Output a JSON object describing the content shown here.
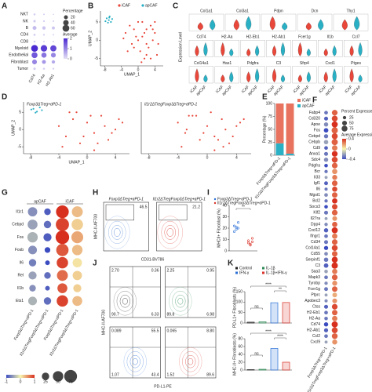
{
  "chart_data": [
    {
      "panel": "A",
      "type": "dot",
      "rows": [
        "NKT",
        "NK",
        "B",
        "CD4",
        "CD8",
        "Myeloid",
        "Endothelial",
        "Fibroblast",
        "Tumor"
      ],
      "columns": [
        "Cd74",
        "H2-Aa",
        "H2-Ab1"
      ],
      "values": [
        [
          5,
          3,
          2
        ],
        [
          8,
          4,
          3
        ],
        [
          20,
          15,
          12
        ],
        [
          6,
          4,
          3
        ],
        [
          5,
          3,
          3
        ],
        [
          60,
          55,
          50
        ],
        [
          45,
          35,
          30
        ],
        [
          30,
          20,
          15
        ],
        [
          8,
          5,
          4
        ]
      ],
      "expression": [
        [
          0.2,
          0.2,
          0.2
        ],
        [
          0.2,
          0.2,
          0.2
        ],
        [
          0.4,
          0.3,
          0.3
        ],
        [
          0.2,
          0.2,
          0.2
        ],
        [
          0.2,
          0.2,
          0.2
        ],
        [
          2,
          1.8,
          1.7
        ],
        [
          1.5,
          1.2,
          1
        ],
        [
          1,
          0.8,
          0.6
        ],
        [
          0.2,
          0.2,
          0.2
        ]
      ],
      "size_title": "Percentage",
      "size_ticks": [
        20,
        40,
        60
      ],
      "color_title": "Average",
      "color_ticks": [
        0,
        1,
        2
      ],
      "colors": [
        "#e4e0f5",
        "#4b2bd1"
      ]
    },
    {
      "panel": "B",
      "type": "scatter",
      "x_label": "UMAP_1",
      "y_label": "UMAP_2",
      "xlim": [
        -9,
        6
      ],
      "xticks": [
        -8,
        -4,
        0,
        4
      ],
      "ylim": [
        -7,
        8
      ],
      "yticks": [
        -5,
        0,
        5
      ],
      "legend": true,
      "series": [
        {
          "name": "iCAF",
          "color": "#e8473a",
          "x": [
            -3,
            -2,
            -1.5,
            -1,
            0,
            0.5,
            1,
            1.5,
            2,
            2.5,
            3,
            3.5,
            4,
            4.5,
            -2.5,
            -0.5,
            1,
            2,
            3,
            4,
            0,
            2,
            3.5,
            -1,
            1.5,
            -3.5,
            4.8,
            0.8
          ],
          "y": [
            2,
            4,
            -1,
            3,
            5,
            -3,
            1,
            -5,
            3,
            -2,
            4,
            0,
            2,
            -4,
            -3,
            1,
            5,
            -1,
            -5,
            5,
            0,
            -4,
            3,
            -2,
            2,
            0.5,
            -1,
            -6
          ]
        },
        {
          "name": "apCAF",
          "color": "#2ab0c5",
          "x": [
            -7.5,
            -7,
            -6.8,
            -6.5,
            -7.2,
            -6.2,
            -7.8,
            -6.9
          ],
          "y": [
            6,
            5.5,
            6.5,
            5,
            4.8,
            5.8,
            5.2,
            6.2
          ]
        }
      ]
    },
    {
      "panel": "C",
      "type": "violin",
      "y_label": "Expression Level",
      "categories": [
        "iCAF",
        "apCAF"
      ],
      "colors": [
        "#e8473a",
        "#2ab0c5"
      ],
      "rows": [
        [
          "Col1a1",
          "Col3a1",
          "Pdpn",
          "Dcn",
          "Thy1"
        ],
        [
          "Cd74",
          "H2-Aa",
          "H2-Eb1",
          "H2-Ab1",
          "Fcer1g",
          "Il1b",
          "Ccl7"
        ],
        [
          "Col14a1",
          "Has1",
          "Pdgfra",
          "C3",
          "Sfrp4",
          "Cxcl1",
          "Ptges"
        ]
      ]
    },
    {
      "panel": "D",
      "type": "scatter",
      "title": "Foxp3ΔTreg+αPD-1",
      "title_color": "#2a6fd6",
      "x_label": "UMAP_1",
      "y_label": "UMAP_2",
      "xlim": [
        -9,
        6
      ],
      "xticks": [
        -8,
        -4,
        0,
        4
      ],
      "ylim": [
        -7,
        8
      ],
      "yticks": [
        -5,
        0,
        5
      ],
      "series": [
        {
          "color": "#e8473a",
          "x": [
            -4,
            -3,
            -2,
            -1,
            0,
            1,
            2,
            3,
            4,
            5,
            -3.5,
            -2.5,
            -0.5,
            0.5,
            1.5,
            2.5,
            3.5,
            4.5,
            -1.5,
            1
          ],
          "y": [
            1,
            -2,
            3,
            -4,
            2,
            -1,
            4,
            -3,
            0,
            2,
            -5,
            5,
            -2,
            4,
            -4,
            1,
            -1,
            3,
            5,
            -6
          ]
        },
        {
          "color": "#2ab0c5",
          "x": [
            -7.6,
            -7.1,
            -6.7,
            -7.3,
            -6.4,
            -7.9
          ],
          "y": [
            6,
            5.2,
            6.4,
            4.9,
            5.6,
            5.8
          ]
        }
      ]
    },
    {
      "type": "scatter",
      "title": "Il1r2ΔTregFoxp3ΔTreg+αPD-1",
      "title_color": "#d9332a",
      "xlim": [
        -9,
        6
      ],
      "xticks": [
        -8,
        -4,
        0,
        4
      ],
      "ylim": [
        -7,
        8
      ],
      "series": [
        {
          "color": "#e8473a",
          "x": [
            -4,
            -3,
            -2,
            -1,
            0,
            1,
            2,
            3,
            4,
            5,
            -3.5,
            -2.5,
            -0.5,
            0.5,
            1.5,
            2.5,
            3.5,
            4.5,
            -1.5,
            1,
            2.2,
            -2.8
          ],
          "y": [
            2,
            -1,
            4,
            -3,
            1,
            -2,
            3,
            -4,
            1,
            3,
            -5,
            4,
            -1,
            5,
            -3,
            0,
            -2,
            2,
            4,
            -6,
            -5,
            0
          ]
        }
      ]
    },
    {
      "panel": "E",
      "type": "bar",
      "stacked": true,
      "y_label": "Percentage (%)",
      "categories": [
        "Foxp3ΔTreg+αPD-1",
        "Il1r2ΔTregFoxp3ΔTreg+αPD-1"
      ],
      "label_colors": [
        "#2a6fd6",
        "#d9332a"
      ],
      "ylim": [
        0,
        100
      ],
      "yticks": [
        0,
        25,
        50,
        75,
        100
      ],
      "series": [
        {
          "name": "apCAF",
          "color": "#2ab0c5",
          "values": [
            23,
            3
          ]
        },
        {
          "name": "iCAF",
          "color": "#e8735f",
          "values": [
            77,
            97
          ]
        }
      ]
    },
    {
      "panel": "F",
      "type": "dot",
      "rows": [
        "Fabp4",
        "Cd320",
        "Apoe",
        "Fos",
        "Cebpd",
        "Cebpb",
        "Cd9",
        "Anxa1",
        "Sdc4",
        "Pdgfra",
        "Bcr",
        "Il33",
        "Igf1",
        "Il6",
        "Mgst1",
        "Bcl2",
        "Socs3",
        "Klf2",
        "Il27ra",
        "Dpp4",
        "Cxcl12",
        "Ifngr1",
        "Cd34",
        "Col14a1",
        "Cd55",
        "Serpinf1",
        "C3",
        "Saa3",
        "Mapk3",
        "Tyrobp",
        "Fcer1g",
        "Ptprc",
        "Apobec3",
        "Ctss",
        "H2-Eb1",
        "H2-Aa",
        "Cd74",
        "H2-Ab1",
        "Ccl2",
        "Cxcl9"
      ],
      "columns": [
        "Foxp3ΔTreg+αPD-1",
        "Il1r2ΔTregFoxp3ΔTreg+αPD-1"
      ],
      "column_colors": [
        "#2a6fd6",
        "#d9332a"
      ],
      "values": [
        [
          30,
          70
        ],
        [
          35,
          75
        ],
        [
          40,
          80
        ],
        [
          45,
          85
        ],
        [
          38,
          78
        ],
        [
          42,
          82
        ],
        [
          30,
          65
        ],
        [
          35,
          72
        ],
        [
          40,
          76
        ],
        [
          28,
          70
        ],
        [
          25,
          60
        ],
        [
          20,
          55
        ],
        [
          32,
          68
        ],
        [
          22,
          58
        ],
        [
          30,
          66
        ],
        [
          25,
          62
        ],
        [
          28,
          64
        ],
        [
          35,
          70
        ],
        [
          20,
          50
        ],
        [
          26,
          60
        ],
        [
          40,
          80
        ],
        [
          30,
          62
        ],
        [
          35,
          68
        ],
        [
          38,
          74
        ],
        [
          30,
          66
        ],
        [
          42,
          78
        ],
        [
          45,
          85
        ],
        [
          28,
          60
        ],
        [
          30,
          70
        ],
        [
          25,
          55
        ],
        [
          32,
          65
        ],
        [
          20,
          48
        ],
        [
          22,
          50
        ],
        [
          35,
          70
        ],
        [
          30,
          64
        ],
        [
          28,
          62
        ],
        [
          40,
          82
        ],
        [
          36,
          76
        ],
        [
          30,
          72
        ],
        [
          20,
          56
        ]
      ],
      "expression": [
        [
          -0.3,
          0.3
        ],
        [
          -0.35,
          0.35
        ],
        [
          -0.25,
          0.4
        ],
        [
          -0.4,
          0.3
        ],
        [
          -0.3,
          0.35
        ],
        [
          -0.2,
          0.3
        ],
        [
          -0.35,
          0.25
        ],
        [
          -0.3,
          0.4
        ],
        [
          -0.25,
          0.35
        ],
        [
          -0.4,
          0.3
        ],
        [
          -0.3,
          0.2
        ],
        [
          -0.2,
          0.25
        ],
        [
          -0.35,
          0.3
        ],
        [
          -0.3,
          0.35
        ],
        [
          -0.25,
          0.3
        ],
        [
          -0.3,
          0.4
        ],
        [
          -0.4,
          0.35
        ],
        [
          -0.3,
          0.3
        ],
        [
          -0.2,
          0.2
        ],
        [
          -0.25,
          0.3
        ],
        [
          -0.35,
          0.4
        ],
        [
          -0.3,
          0.25
        ],
        [
          -0.3,
          0.3
        ],
        [
          -0.4,
          0.35
        ],
        [
          -0.25,
          0.3
        ],
        [
          -0.3,
          0.4
        ],
        [
          -0.35,
          0.4
        ],
        [
          -0.2,
          0.25
        ],
        [
          -0.3,
          0.3
        ],
        [
          -0.25,
          0.2
        ],
        [
          -0.3,
          0.3
        ],
        [
          -0.2,
          0.15
        ],
        [
          -0.25,
          0.2
        ],
        [
          -0.35,
          0.35
        ],
        [
          -0.3,
          0.3
        ],
        [
          -0.3,
          0.25
        ],
        [
          -0.4,
          0.4
        ],
        [
          -0.35,
          0.35
        ],
        [
          -0.3,
          0.3
        ],
        [
          -0.2,
          0.2
        ]
      ],
      "size_title": "Percent Expressed",
      "size_ticks": [
        25,
        50,
        75
      ],
      "color_title": "Average Expression",
      "color_ticks": [
        0.4,
        0,
        -0.4
      ],
      "colors": [
        "#3b4cc0",
        "#f7f7b0",
        "#d7301f"
      ]
    },
    {
      "panel": "G",
      "type": "dot",
      "headers": [
        "apCAF",
        "iCAF"
      ],
      "rows": [
        "Il1r1",
        "Cebpd",
        "Fos",
        "Fosb",
        "Il6",
        "Rel",
        "Il1b",
        "Ets1"
      ],
      "columns": [
        "Foxp3ΔTreg+αPD-1",
        "Il1r2ΔTregFoxp3ΔTreg+αPD-1",
        "Foxp3ΔTreg+αPD-1",
        "Il1r2ΔTregFoxp3ΔTreg+αPD-1"
      ],
      "column_colors": [
        "#2a6fd6",
        "#d9332a",
        "#2a6fd6",
        "#d9332a"
      ],
      "values": [
        [
          40,
          20,
          75,
          55
        ],
        [
          45,
          25,
          80,
          60
        ],
        [
          50,
          30,
          85,
          65
        ],
        [
          35,
          15,
          70,
          50
        ],
        [
          25,
          10,
          60,
          40
        ],
        [
          30,
          20,
          55,
          40
        ],
        [
          20,
          10,
          45,
          30
        ],
        [
          35,
          25,
          60,
          45
        ]
      ],
      "expression": [
        [
          -0.6,
          -0.9,
          1,
          0.3
        ],
        [
          -0.5,
          -0.8,
          0.9,
          0.2
        ],
        [
          -0.4,
          -0.9,
          1,
          0.4
        ],
        [
          -0.6,
          -1,
          0.8,
          0.3
        ],
        [
          -0.7,
          -1,
          0.9,
          0.1
        ],
        [
          -0.5,
          -0.8,
          0.7,
          0.2
        ],
        [
          -0.6,
          -0.9,
          0.8,
          0.2
        ],
        [
          -0.4,
          -0.8,
          0.9,
          0.3
        ]
      ],
      "size_ticks": [
        25,
        50,
        75
      ],
      "color_ticks": [
        -1,
        0,
        1
      ],
      "colors": [
        "#3b4cc0",
        "#f7f7b0",
        "#d7301f"
      ]
    },
    {
      "panel": "H",
      "type": "flow",
      "x_label": "CD31-BV786",
      "y_label": "MHC-II-AF700",
      "plots": [
        {
          "title": "Foxp3ΔTreg+αPD-1",
          "title_color": "#2a6fd6",
          "gate": "46.5",
          "color": "#4a7fd4"
        },
        {
          "title": "Il1r2ΔTregFoxp3ΔTreg+αPD-1",
          "title_color": "#d9332a",
          "gate": "21.2",
          "color": "#d9332a"
        }
      ]
    },
    {
      "panel": "I",
      "type": "strip",
      "y_label": "MHCII+ Fibroblast (%)",
      "ylim": [
        0,
        40
      ],
      "yticks": [
        0,
        10,
        20,
        30,
        40
      ],
      "sig": "**",
      "groups": [
        {
          "name": "Foxp3ΔTreg+αPD-1",
          "color": "#2a6fd6",
          "values": [
            22,
            19,
            25,
            17,
            21,
            20
          ]
        },
        {
          "name": "Il1r2ΔTregFoxp3ΔTreg+αPD-1",
          "color": "#d9332a",
          "values": [
            9,
            6,
            11,
            7,
            5,
            8
          ]
        }
      ]
    },
    {
      "panel": "J",
      "type": "quadrant",
      "x_label": "PD-L1-PE",
      "y_label": "MHC-II-AF700",
      "plots": [
        {
          "color": "#222222",
          "labels": [
            "2.70",
            "0.36",
            "90.7",
            "6.33"
          ]
        },
        {
          "color": "#2e8b57",
          "labels": [
            "2.25",
            "0.95",
            "89.8",
            "6.98"
          ]
        },
        {
          "color": "#2a6fd6",
          "labels": [
            "0.089",
            "55.5",
            "1.07",
            "43.4"
          ]
        },
        {
          "color": "#d9332a",
          "labels": [
            "0.065",
            "8.80",
            "1.52",
            "89.6"
          ]
        }
      ]
    },
    {
      "panel": "K",
      "type": "bar",
      "legend": true,
      "y_label": "PD-L1+ Fibroblasts (%)",
      "categories": [
        "Control",
        "IL-1β",
        "IFN-γ",
        "IL-1β+IFN-γ"
      ],
      "colors": [
        "#222222",
        "#2e8b57",
        "#2a6fd6",
        "#d9332a"
      ],
      "values": [
        4,
        6,
        97,
        98
      ],
      "ylim": [
        0,
        150
      ],
      "yticks": [
        0,
        50,
        100,
        150
      ],
      "sig": [
        "ns",
        "****",
        "**"
      ]
    },
    {
      "type": "bar",
      "y_label": "MHC-II+ Fibroblasts (%)",
      "colors": [
        "#222222",
        "#2e8b57",
        "#2a6fd6",
        "#d9332a"
      ],
      "values": [
        1,
        2,
        55,
        20
      ],
      "ylim": [
        0,
        80
      ],
      "yticks": [
        0,
        20,
        40,
        60,
        80
      ],
      "sig": [
        "ns",
        "****",
        "****"
      ]
    }
  ]
}
